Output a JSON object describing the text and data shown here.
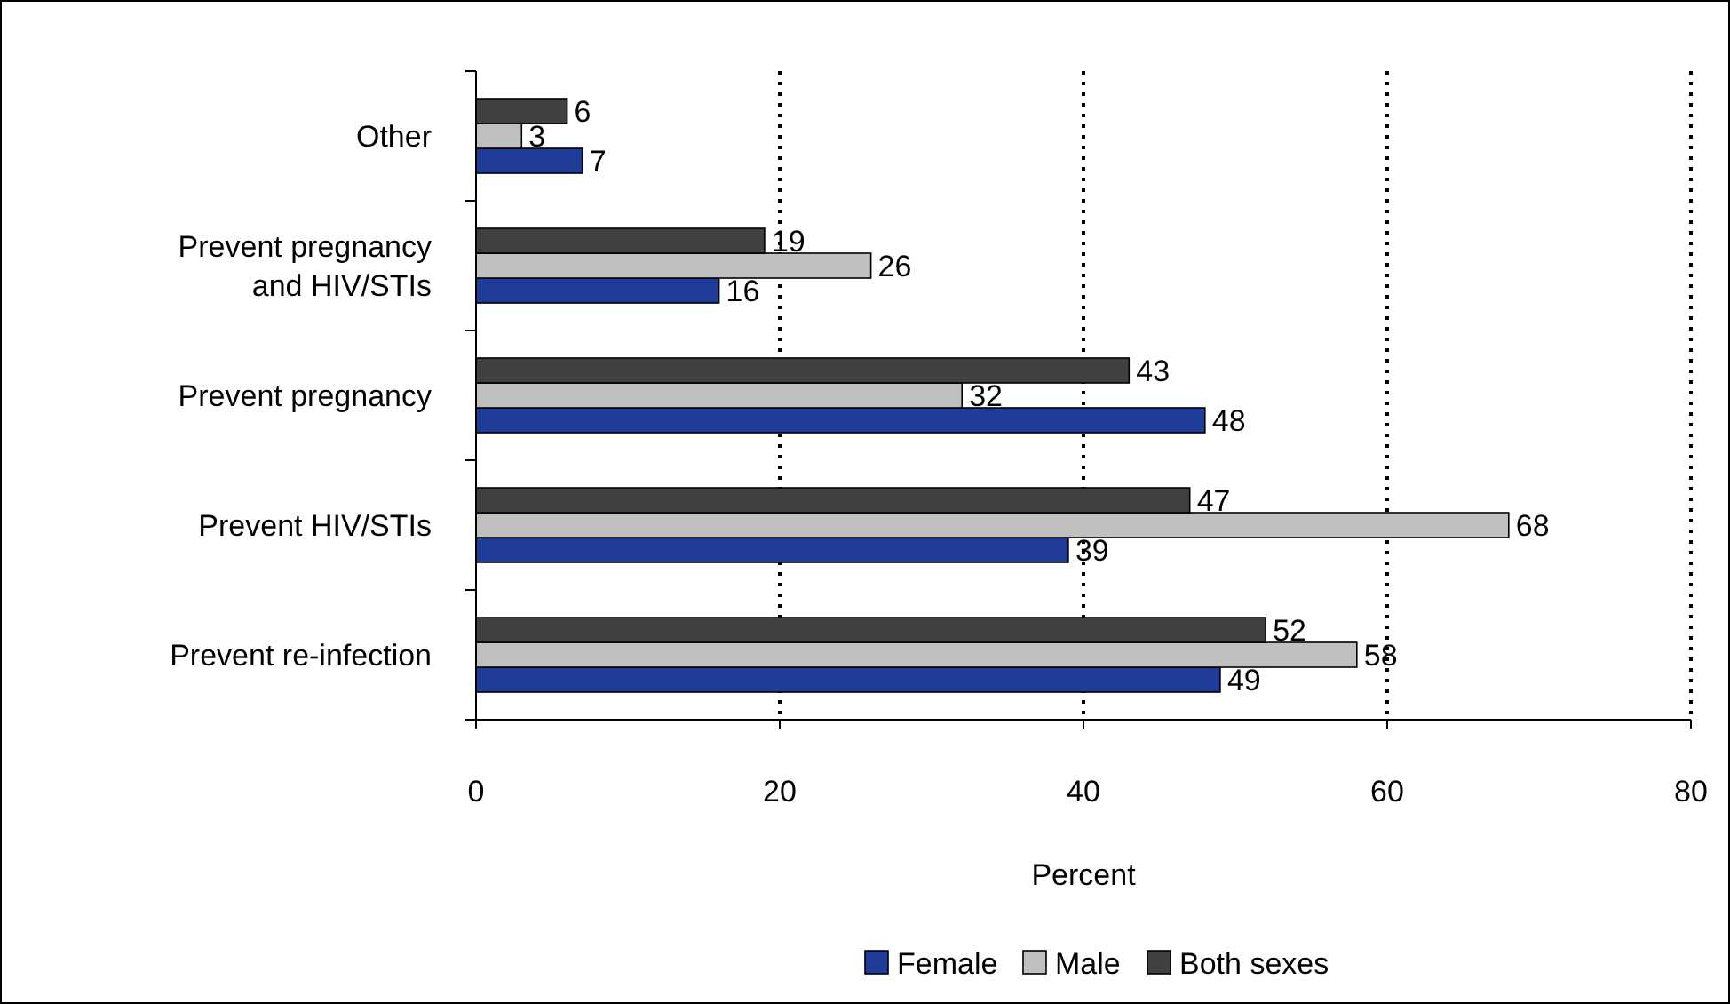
{
  "chart_data": {
    "type": "bar",
    "orientation": "horizontal",
    "xlabel": "Percent",
    "categories": [
      "Other",
      "Prevent pregnancy and HIV/STIs",
      "Prevent pregnancy",
      "Prevent HIV/STIs",
      "Prevent re-infection"
    ],
    "series": [
      {
        "name": "Female",
        "color": "#1f3c99",
        "values": [
          7,
          16,
          48,
          39,
          49
        ]
      },
      {
        "name": "Male",
        "color": "#c0c0c0",
        "values": [
          3,
          26,
          32,
          68,
          58
        ]
      },
      {
        "name": "Both sexes",
        "color": "#404040",
        "values": [
          6,
          19,
          43,
          47,
          52
        ]
      }
    ],
    "xlim": [
      0,
      80
    ],
    "xticks": [
      0,
      20,
      40,
      60,
      80
    ],
    "grid": "x",
    "legend": "bottom",
    "data_labels": true
  }
}
